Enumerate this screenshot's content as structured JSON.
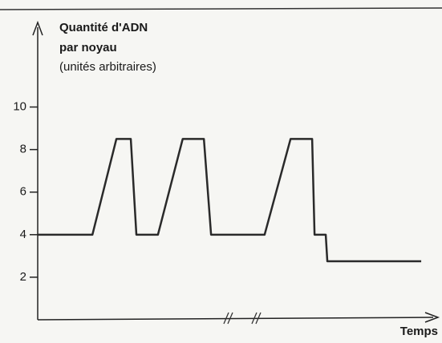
{
  "chart_data": {
    "type": "line",
    "ylabel_lines": [
      "Quantité d'ADN",
      "par noyau",
      "(unités arbitraires)"
    ],
    "xlabel": "Temps",
    "x": [
      0,
      13.7,
      19.7,
      23.3,
      24.7,
      30.1,
      36.3,
      41.6,
      43.4,
      56.8,
      63.3,
      68.7,
      69.3,
      72.1,
      72.5,
      96
    ],
    "series": [
      {
        "name": "ADN",
        "color": "#2a2a2a",
        "values": [
          4,
          4,
          8.5,
          8.5,
          4,
          4,
          8.5,
          8.5,
          4,
          4,
          8.5,
          8.5,
          4,
          4,
          2.75,
          2.75
        ]
      }
    ],
    "xlim": [
      0,
      100
    ],
    "ylim": [
      0,
      13.9
    ],
    "yticks": [
      2,
      4,
      6,
      8,
      10
    ]
  }
}
